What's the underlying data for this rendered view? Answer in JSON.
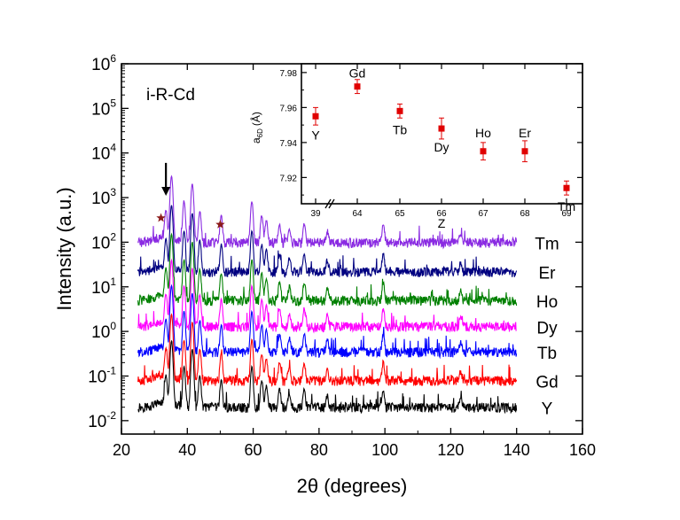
{
  "chart_data": [
    {
      "type": "line",
      "panel": "main",
      "annotation": "i-R-Cd",
      "xlabel": "2θ (degrees)",
      "ylabel": "Intensity (a.u.)",
      "xlim": [
        20,
        160
      ],
      "xticks": [
        "20",
        "40",
        "60",
        "80",
        "100",
        "120",
        "140",
        "160"
      ],
      "yscale": "log",
      "ylim": [
        0.005,
        1000000
      ],
      "yticks": [
        {
          "base": "10",
          "exp": "-2"
        },
        {
          "base": "10",
          "exp": "-1"
        },
        {
          "base": "10",
          "exp": "0"
        },
        {
          "base": "10",
          "exp": "1"
        },
        {
          "base": "10",
          "exp": "2"
        },
        {
          "base": "10",
          "exp": "3"
        },
        {
          "base": "10",
          "exp": "4"
        },
        {
          "base": "10",
          "exp": "5"
        },
        {
          "base": "10",
          "exp": "6"
        }
      ],
      "x_range_data": [
        25,
        140
      ],
      "grid": false,
      "series": [
        {
          "name": "Y",
          "color": "#000000",
          "baseline": 0.02
        },
        {
          "name": "Gd",
          "color": "#ff0000",
          "baseline": 0.08
        },
        {
          "name": "Tb",
          "color": "#0000ff",
          "baseline": 0.35
        },
        {
          "name": "Dy",
          "color": "#ff00ff",
          "baseline": 1.3
        },
        {
          "name": "Ho",
          "color": "#008000",
          "baseline": 5.0
        },
        {
          "name": "Er",
          "color": "#000080",
          "baseline": 22
        },
        {
          "name": "Tm",
          "color": "#8a2be2",
          "baseline": 100
        }
      ],
      "peaks": [
        {
          "x": 33.5,
          "rel": 5
        },
        {
          "x": 35.2,
          "rel": 30
        },
        {
          "x": 39.0,
          "rel": 8
        },
        {
          "x": 41.5,
          "rel": 20
        },
        {
          "x": 43.8,
          "rel": 5
        },
        {
          "x": 50.3,
          "rel": 4
        },
        {
          "x": 59.6,
          "rel": 8
        },
        {
          "x": 62.6,
          "rel": 4
        },
        {
          "x": 64.0,
          "rel": 3
        },
        {
          "x": 68.0,
          "rel": 2.5
        },
        {
          "x": 71.0,
          "rel": 2
        },
        {
          "x": 75.5,
          "rel": 2.5
        },
        {
          "x": 82.5,
          "rel": 1.8
        },
        {
          "x": 99.5,
          "rel": 2.5
        },
        {
          "x": 123.0,
          "rel": 1.6
        }
      ],
      "markers": [
        {
          "type": "arrow",
          "x": 33.5,
          "y_from": 6000,
          "y_to": 1100
        },
        {
          "type": "star",
          "x": 32.0,
          "y": 350,
          "color": "#8b1a1a"
        },
        {
          "type": "star",
          "x": 50.0,
          "y": 250,
          "color": "#8b1a1a"
        }
      ]
    },
    {
      "type": "scatter",
      "panel": "inset",
      "xlabel": "Z",
      "ylabel": "a",
      "ylabel_sub": "6D",
      "ylabel_unit": "(Å)",
      "x_categories": [
        "39",
        "64",
        "65",
        "66",
        "67",
        "68",
        "69"
      ],
      "axis_break": true,
      "ylim": [
        7.905,
        7.985
      ],
      "yticks": [
        "7.92",
        "7.94",
        "7.96",
        "7.98"
      ],
      "marker_color": "#e00000",
      "points": [
        {
          "label": "Y",
          "y": 7.955,
          "err": 0.005
        },
        {
          "label": "Gd",
          "y": 7.972,
          "err": 0.004
        },
        {
          "label": "Tb",
          "y": 7.958,
          "err": 0.004
        },
        {
          "label": "Dy",
          "y": 7.948,
          "err": 0.006
        },
        {
          "label": "Ho",
          "y": 7.935,
          "err": 0.005
        },
        {
          "label": "Er",
          "y": 7.935,
          "err": 0.006
        },
        {
          "label": "Tm",
          "y": 7.914,
          "err": 0.004
        }
      ]
    }
  ]
}
